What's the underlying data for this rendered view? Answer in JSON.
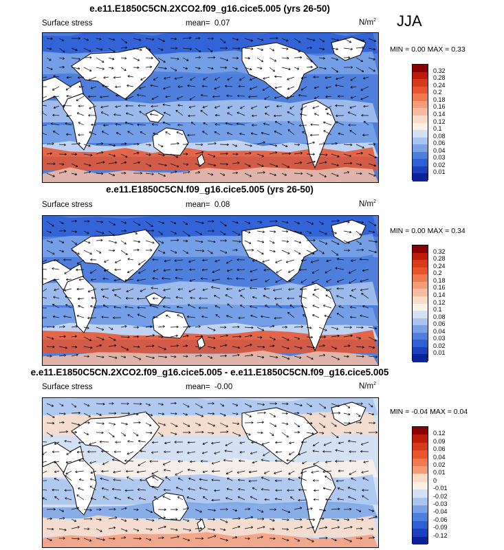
{
  "season": "JJA",
  "panels": [
    {
      "title": "e.e11.E1850C5CN.2XCO2.f09_g16.cice5.005 (yrs 26-50)",
      "left_label": "Surface stress",
      "mean_label": "mean=",
      "mean_value": "0.07",
      "unit_base": "N/m",
      "unit_exp": "2",
      "minmax": "MIN =  0.00 MAX =  0.33",
      "colorbar": {
        "ticks": [
          "0.32",
          "0.28",
          "0.24",
          "0.2",
          "0.18",
          "0.16",
          "0.14",
          "0.12",
          "0.1",
          "0.08",
          "0.06",
          "0.04",
          "0.03",
          "0.02",
          "0.01"
        ],
        "colors": [
          "#8b0000",
          "#c01a0a",
          "#d73a1a",
          "#e8552d",
          "#f07a50",
          "#f49c78",
          "#f7bca0",
          "#f9dcc8",
          "#fbf0e6",
          "#d3e1f5",
          "#a9c4ee",
          "#7aa3e6",
          "#4f7fdd",
          "#2d5fd6",
          "#1c3fc0",
          "#0a2399"
        ]
      }
    },
    {
      "title": "e.e11.E1850C5CN.f09_g16.cice5.005 (yrs 26-50)",
      "left_label": "Surface stress",
      "mean_label": "mean=",
      "mean_value": "0.08",
      "unit_base": "N/m",
      "unit_exp": "2",
      "minmax": "MIN =  0.00 MAX =  0.34",
      "colorbar": {
        "ticks": [
          "0.32",
          "0.28",
          "0.24",
          "0.2",
          "0.18",
          "0.16",
          "0.14",
          "0.12",
          "0.1",
          "0.08",
          "0.06",
          "0.04",
          "0.03",
          "0.02",
          "0.01"
        ],
        "colors": [
          "#8b0000",
          "#c01a0a",
          "#d73a1a",
          "#e8552d",
          "#f07a50",
          "#f49c78",
          "#f7bca0",
          "#f9dcc8",
          "#fbf0e6",
          "#d3e1f5",
          "#a9c4ee",
          "#7aa3e6",
          "#4f7fdd",
          "#2d5fd6",
          "#1c3fc0",
          "#0a2399"
        ]
      }
    },
    {
      "title": "e.e11.E1850C5CN.2XCO2.f09_g16.cice5.005 - e.e11.E1850C5CN.f09_g16.cice5.005",
      "left_label": "Surface stress",
      "mean_label": "mean=",
      "mean_value": "-0.00",
      "unit_base": "N/m",
      "unit_exp": "2",
      "minmax": "MIN = -0.04 MAX =  0.04",
      "colorbar": {
        "ticks": [
          "0.12",
          "0.09",
          "0.06",
          "0.04",
          "0.02",
          "0.01",
          "0",
          "-0.01",
          "-0.02",
          "-0.03",
          "-0.04",
          "-0.06",
          "-0.09",
          "-0.12"
        ],
        "colors": [
          "#8b0000",
          "#c01a0a",
          "#d73a1a",
          "#e8552d",
          "#f07a50",
          "#f49c78",
          "#f9dcc8",
          "#fbf0e6",
          "#d3e1f5",
          "#a9c4ee",
          "#7aa3e6",
          "#4f7fdd",
          "#2d5fd6",
          "#1c3fc0",
          "#0a2399"
        ]
      }
    }
  ]
}
